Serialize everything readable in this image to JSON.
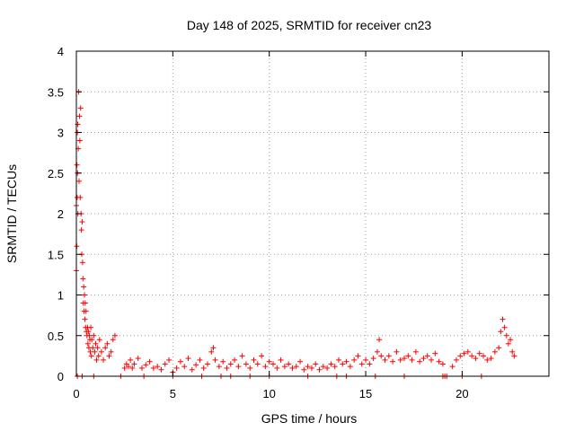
{
  "chart_data": {
    "type": "scatter",
    "title": "Day 148 of 2025, SRMTID for receiver cn23",
    "xlabel": "GPS time / hours",
    "ylabel": "SRMTID / TECUs",
    "xlim": [
      0,
      24.5
    ],
    "ylim": [
      0,
      4
    ],
    "xticks": [
      0,
      5,
      10,
      15,
      20
    ],
    "xtick_labels": [
      "0",
      "5",
      "10",
      "15",
      "20"
    ],
    "yticks": [
      0,
      0.5,
      1,
      1.5,
      2,
      2.5,
      3,
      3.5,
      4
    ],
    "ytick_labels": [
      "0",
      "0.5",
      "1",
      "1.5",
      "2",
      "2.5",
      "3",
      "3.5",
      "4"
    ],
    "grid": true,
    "legend": "none",
    "marker": "+",
    "series": [
      {
        "name": "cn23",
        "color": "#ff0000",
        "x": [
          0.0,
          0.0,
          0.02,
          0.03,
          0.04,
          0.05,
          0.06,
          0.07,
          0.08,
          0.1,
          0.12,
          0.14,
          0.16,
          0.18,
          0.2,
          0.22,
          0.24,
          0.26,
          0.28,
          0.3,
          0.32,
          0.34,
          0.36,
          0.38,
          0.4,
          0.42,
          0.44,
          0.46,
          0.48,
          0.5,
          0.52,
          0.55,
          0.58,
          0.6,
          0.62,
          0.65,
          0.68,
          0.7,
          0.72,
          0.75,
          0.78,
          0.8,
          0.85,
          0.9,
          0.95,
          1.0,
          1.05,
          1.1,
          1.15,
          1.2,
          1.3,
          1.4,
          1.5,
          1.6,
          1.7,
          1.8,
          1.9,
          2.0,
          2.5,
          2.6,
          2.7,
          2.8,
          2.9,
          3.0,
          3.2,
          3.4,
          3.6,
          3.8,
          4.0,
          4.2,
          4.4,
          4.6,
          4.8,
          5.0,
          5.2,
          5.4,
          5.6,
          5.8,
          6.0,
          6.2,
          6.4,
          6.6,
          6.8,
          7.0,
          7.1,
          7.2,
          7.4,
          7.6,
          7.8,
          8.0,
          8.2,
          8.4,
          8.6,
          8.8,
          9.0,
          9.2,
          9.4,
          9.6,
          9.8,
          10.0,
          10.2,
          10.4,
          10.6,
          10.8,
          11.0,
          11.2,
          11.4,
          11.6,
          11.8,
          12.0,
          12.2,
          12.4,
          12.6,
          12.8,
          13.0,
          13.2,
          13.4,
          13.6,
          13.8,
          14.0,
          14.2,
          14.4,
          14.6,
          14.8,
          15.0,
          15.2,
          15.4,
          15.6,
          15.7,
          15.8,
          16.0,
          16.2,
          16.4,
          16.6,
          16.8,
          17.0,
          17.2,
          17.4,
          17.6,
          17.8,
          18.0,
          18.2,
          18.4,
          18.6,
          18.8,
          19.0,
          19.5,
          19.7,
          19.9,
          20.1,
          20.3,
          20.5,
          20.7,
          20.9,
          21.1,
          21.3,
          21.5,
          21.7,
          21.9,
          22.0,
          22.1,
          22.2,
          22.3,
          22.4,
          22.5,
          22.6,
          22.7
        ],
        "y": [
          1.3,
          2.1,
          1.6,
          2.6,
          2.2,
          3.0,
          2.5,
          3.1,
          2.0,
          2.8,
          3.5,
          2.4,
          3.2,
          2.9,
          2.2,
          3.3,
          2.0,
          1.8,
          1.5,
          1.9,
          1.4,
          1.2,
          0.9,
          1.1,
          0.8,
          1.0,
          0.7,
          0.9,
          0.6,
          0.8,
          0.55,
          0.5,
          0.6,
          0.4,
          0.55,
          0.35,
          0.5,
          0.45,
          0.3,
          0.6,
          0.25,
          0.45,
          0.35,
          0.5,
          0.3,
          0.4,
          0.2,
          0.35,
          0.25,
          0.45,
          0.3,
          0.2,
          0.35,
          0.4,
          0.25,
          0.3,
          0.45,
          0.5,
          0.1,
          0.15,
          0.12,
          0.2,
          0.1,
          0.15,
          0.22,
          0.1,
          0.14,
          0.18,
          0.1,
          0.12,
          0.08,
          0.15,
          0.2,
          0.05,
          0.1,
          0.18,
          0.12,
          0.22,
          0.08,
          0.14,
          0.2,
          0.1,
          0.15,
          0.3,
          0.35,
          0.2,
          0.12,
          0.18,
          0.1,
          0.15,
          0.2,
          0.12,
          0.25,
          0.15,
          0.1,
          0.2,
          0.15,
          0.25,
          0.12,
          0.18,
          0.15,
          0.1,
          0.2,
          0.12,
          0.15,
          0.1,
          0.12,
          0.18,
          0.08,
          0.12,
          0.1,
          0.15,
          0.08,
          0.12,
          0.1,
          0.15,
          0.12,
          0.2,
          0.15,
          0.18,
          0.12,
          0.2,
          0.25,
          0.15,
          0.2,
          0.15,
          0.22,
          0.3,
          0.45,
          0.25,
          0.2,
          0.25,
          0.18,
          0.3,
          0.2,
          0.22,
          0.25,
          0.2,
          0.3,
          0.18,
          0.22,
          0.25,
          0.2,
          0.28,
          0.18,
          0.15,
          0.12,
          0.2,
          0.25,
          0.28,
          0.3,
          0.25,
          0.22,
          0.28,
          0.25,
          0.2,
          0.22,
          0.3,
          0.35,
          0.55,
          0.7,
          0.6,
          0.5,
          0.4,
          0.45,
          0.3,
          0.25
        ],
        "zero_marks_x": [
          0.05,
          0.3,
          0.9,
          2.3,
          3.5,
          5.0,
          6.5,
          7.5,
          8.0,
          9.0,
          10.0,
          12.0,
          13.5,
          14.0,
          15.5,
          17.0,
          19.0,
          19.1,
          19.2,
          20.0,
          21.0
        ]
      }
    ]
  }
}
